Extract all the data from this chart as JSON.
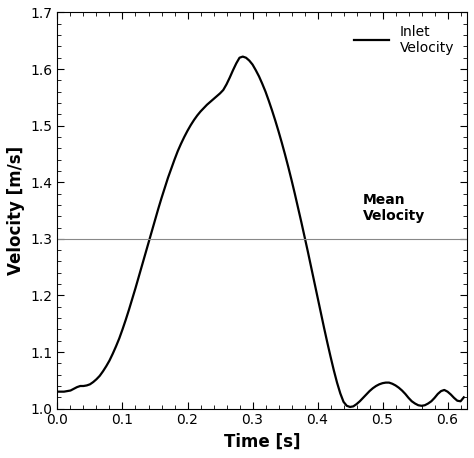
{
  "title": "",
  "xlabel": "Time [s]",
  "ylabel": "Velocity [m/s]",
  "xlim": [
    0,
    0.63
  ],
  "ylim": [
    1.0,
    1.7
  ],
  "xticks": [
    0.0,
    0.1,
    0.2,
    0.3,
    0.4,
    0.5,
    0.6
  ],
  "yticks": [
    1.0,
    1.1,
    1.2,
    1.3,
    1.4,
    1.5,
    1.6,
    1.7
  ],
  "mean_velocity": 1.3,
  "mean_velocity_label": "Mean\nVelocity",
  "inlet_velocity_label": "Inlet\nVelocity",
  "curve_color": "#000000",
  "mean_line_color": "#888888",
  "curve_linewidth": 1.6,
  "mean_linewidth": 0.8,
  "background_color": "#ffffff",
  "curve_x": [
    0.0,
    0.005,
    0.01,
    0.015,
    0.02,
    0.025,
    0.03,
    0.035,
    0.04,
    0.045,
    0.05,
    0.055,
    0.06,
    0.065,
    0.07,
    0.075,
    0.08,
    0.085,
    0.09,
    0.095,
    0.1,
    0.105,
    0.11,
    0.115,
    0.12,
    0.125,
    0.13,
    0.135,
    0.14,
    0.145,
    0.15,
    0.155,
    0.16,
    0.165,
    0.17,
    0.175,
    0.18,
    0.185,
    0.19,
    0.195,
    0.2,
    0.205,
    0.21,
    0.215,
    0.22,
    0.225,
    0.23,
    0.235,
    0.24,
    0.245,
    0.25,
    0.255,
    0.26,
    0.265,
    0.27,
    0.275,
    0.28,
    0.285,
    0.29,
    0.295,
    0.3,
    0.305,
    0.31,
    0.315,
    0.32,
    0.325,
    0.33,
    0.335,
    0.34,
    0.345,
    0.35,
    0.355,
    0.36,
    0.365,
    0.37,
    0.375,
    0.38,
    0.385,
    0.39,
    0.395,
    0.4,
    0.405,
    0.41,
    0.415,
    0.42,
    0.425,
    0.43,
    0.435,
    0.44,
    0.445,
    0.45,
    0.455,
    0.46,
    0.465,
    0.47,
    0.475,
    0.48,
    0.485,
    0.49,
    0.495,
    0.5,
    0.505,
    0.51,
    0.515,
    0.52,
    0.525,
    0.53,
    0.535,
    0.54,
    0.545,
    0.55,
    0.555,
    0.56,
    0.565,
    0.57,
    0.575,
    0.58,
    0.585,
    0.59,
    0.595,
    0.6,
    0.605,
    0.61,
    0.615,
    0.62,
    0.625
  ],
  "curve_y": [
    1.03,
    1.03,
    1.03,
    1.031,
    1.032,
    1.035,
    1.038,
    1.04,
    1.04,
    1.041,
    1.043,
    1.047,
    1.052,
    1.058,
    1.066,
    1.075,
    1.085,
    1.097,
    1.11,
    1.124,
    1.14,
    1.157,
    1.175,
    1.194,
    1.213,
    1.233,
    1.253,
    1.273,
    1.293,
    1.313,
    1.333,
    1.353,
    1.372,
    1.39,
    1.408,
    1.424,
    1.44,
    1.455,
    1.468,
    1.48,
    1.491,
    1.501,
    1.51,
    1.518,
    1.525,
    1.531,
    1.537,
    1.542,
    1.547,
    1.552,
    1.557,
    1.563,
    1.573,
    1.585,
    1.598,
    1.61,
    1.62,
    1.622,
    1.62,
    1.615,
    1.608,
    1.598,
    1.587,
    1.574,
    1.56,
    1.544,
    1.527,
    1.509,
    1.49,
    1.47,
    1.449,
    1.427,
    1.404,
    1.38,
    1.355,
    1.33,
    1.304,
    1.278,
    1.251,
    1.224,
    1.197,
    1.17,
    1.143,
    1.117,
    1.092,
    1.068,
    1.046,
    1.027,
    1.012,
    1.005,
    1.003,
    1.004,
    1.008,
    1.013,
    1.019,
    1.025,
    1.031,
    1.036,
    1.04,
    1.043,
    1.045,
    1.046,
    1.046,
    1.044,
    1.041,
    1.037,
    1.032,
    1.026,
    1.019,
    1.013,
    1.009,
    1.006,
    1.005,
    1.006,
    1.009,
    1.013,
    1.019,
    1.026,
    1.031,
    1.033,
    1.03,
    1.025,
    1.019,
    1.014,
    1.013,
    1.02
  ]
}
